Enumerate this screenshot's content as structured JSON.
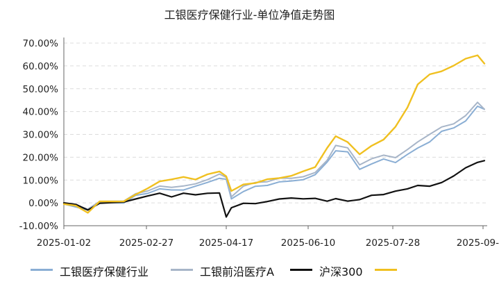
{
  "chart_data": {
    "type": "line",
    "title": "工银医疗保健行业-单位净值走势图",
    "xlabel": "",
    "ylabel": "",
    "x_ticks": [
      "2025-01-02",
      "2025-02-27",
      "2025-04-17",
      "2025-06-10",
      "2025-07-28",
      "2025-09-"
    ],
    "y_ticks": [
      "70.00%",
      "60.00%",
      "50.00%",
      "40.00%",
      "30.00%",
      "20.00%",
      "10.00%",
      "0.00%",
      "-10.00%"
    ],
    "ylim": [
      -10,
      70
    ],
    "grid": "horizontal dashed",
    "legend_position": "bottom",
    "series": [
      {
        "name": "工银医疗保健行业",
        "color": "#8aaed4",
        "x": [
          "2025-01-02",
          "2025-01-09",
          "2025-01-16",
          "2025-01-23",
          "2025-02-06",
          "2025-02-13",
          "2025-02-20",
          "2025-02-27",
          "2025-03-06",
          "2025-03-13",
          "2025-03-20",
          "2025-03-27",
          "2025-04-03",
          "2025-04-07",
          "2025-04-10",
          "2025-04-17",
          "2025-04-24",
          "2025-05-01",
          "2025-05-08",
          "2025-05-15",
          "2025-05-22",
          "2025-05-29",
          "2025-06-05",
          "2025-06-10",
          "2025-06-17",
          "2025-06-24",
          "2025-07-01",
          "2025-07-08",
          "2025-07-15",
          "2025-07-22",
          "2025-07-28",
          "2025-08-04",
          "2025-08-11",
          "2025-08-18",
          "2025-08-25",
          "2025-09-01",
          "2025-09-05"
        ],
        "values": [
          -0.5,
          -1.5,
          -3.5,
          0.5,
          0.0,
          3.0,
          4.5,
          6.0,
          5.5,
          6.0,
          7.0,
          9.0,
          11.0,
          10.0,
          2.0,
          5.0,
          7.0,
          8.0,
          9.0,
          9.5,
          10.5,
          12.0,
          18.0,
          23.0,
          22.0,
          15.0,
          17.0,
          19.0,
          18.0,
          21.0,
          24.0,
          27.0,
          31.0,
          33.0,
          36.0,
          42.0,
          41.0
        ]
      },
      {
        "name": "工银前沿医疗A",
        "color": "#a7b5c8",
        "x": [
          "2025-01-02",
          "2025-01-09",
          "2025-01-16",
          "2025-01-23",
          "2025-02-06",
          "2025-02-13",
          "2025-02-20",
          "2025-02-27",
          "2025-03-06",
          "2025-03-13",
          "2025-03-20",
          "2025-03-27",
          "2025-04-03",
          "2025-04-07",
          "2025-04-10",
          "2025-04-17",
          "2025-04-24",
          "2025-05-01",
          "2025-05-08",
          "2025-05-15",
          "2025-05-22",
          "2025-05-29",
          "2025-06-05",
          "2025-06-10",
          "2025-06-17",
          "2025-06-24",
          "2025-07-01",
          "2025-07-08",
          "2025-07-15",
          "2025-07-22",
          "2025-07-28",
          "2025-08-04",
          "2025-08-11",
          "2025-08-18",
          "2025-08-25",
          "2025-09-01",
          "2025-09-05"
        ],
        "values": [
          -0.3,
          -1.0,
          -3.0,
          1.0,
          0.5,
          4.0,
          5.5,
          7.0,
          7.0,
          7.5,
          8.0,
          10.5,
          12.5,
          11.0,
          3.0,
          7.0,
          9.0,
          9.5,
          10.5,
          11.0,
          11.5,
          13.0,
          19.0,
          25.0,
          24.0,
          17.0,
          19.0,
          21.0,
          20.0,
          23.0,
          27.0,
          30.0,
          33.0,
          35.0,
          38.0,
          44.0,
          41.0
        ]
      },
      {
        "name": "沪深300",
        "color": "#111111",
        "x": [
          "2025-01-02",
          "2025-01-09",
          "2025-01-16",
          "2025-01-23",
          "2025-02-06",
          "2025-02-13",
          "2025-02-20",
          "2025-02-27",
          "2025-03-06",
          "2025-03-13",
          "2025-03-20",
          "2025-03-27",
          "2025-04-03",
          "2025-04-07",
          "2025-04-10",
          "2025-04-17",
          "2025-04-24",
          "2025-05-01",
          "2025-05-08",
          "2025-05-15",
          "2025-05-22",
          "2025-05-29",
          "2025-06-05",
          "2025-06-10",
          "2025-06-17",
          "2025-06-24",
          "2025-07-01",
          "2025-07-08",
          "2025-07-15",
          "2025-07-22",
          "2025-07-28",
          "2025-08-04",
          "2025-08-11",
          "2025-08-18",
          "2025-08-25",
          "2025-09-01",
          "2025-09-05"
        ],
        "values": [
          0.0,
          -1.0,
          -3.0,
          0.0,
          0.0,
          2.0,
          3.0,
          4.0,
          3.0,
          4.0,
          3.5,
          4.5,
          4.0,
          -6.0,
          -2.0,
          -0.5,
          0.0,
          0.5,
          1.5,
          2.5,
          1.5,
          2.0,
          1.0,
          1.5,
          1.0,
          1.5,
          3.0,
          4.0,
          5.0,
          6.0,
          8.0,
          7.0,
          9.0,
          12.0,
          15.0,
          18.0,
          18.5
        ]
      },
      {
        "name": "",
        "color": "#f0c020",
        "x": [
          "2025-01-02",
          "2025-01-09",
          "2025-01-16",
          "2025-01-23",
          "2025-02-06",
          "2025-02-13",
          "2025-02-20",
          "2025-02-27",
          "2025-03-06",
          "2025-03-13",
          "2025-03-20",
          "2025-03-27",
          "2025-04-03",
          "2025-04-07",
          "2025-04-10",
          "2025-04-17",
          "2025-04-24",
          "2025-05-01",
          "2025-05-08",
          "2025-05-15",
          "2025-05-22",
          "2025-05-29",
          "2025-06-05",
          "2025-06-10",
          "2025-06-17",
          "2025-06-24",
          "2025-07-01",
          "2025-07-08",
          "2025-07-15",
          "2025-07-22",
          "2025-07-28",
          "2025-08-04",
          "2025-08-11",
          "2025-08-18",
          "2025-08-25",
          "2025-09-01",
          "2025-09-05"
        ],
        "values": [
          -0.5,
          -1.5,
          -4.0,
          0.5,
          0.5,
          4.0,
          6.0,
          9.5,
          10.5,
          11.0,
          10.5,
          12.5,
          13.5,
          12.0,
          5.0,
          8.0,
          9.0,
          10.0,
          11.0,
          12.0,
          13.5,
          16.0,
          24.0,
          29.0,
          27.0,
          21.0,
          25.0,
          28.0,
          33.0,
          42.0,
          52.0,
          56.0,
          58.0,
          60.0,
          63.0,
          65.0,
          61.0
        ]
      }
    ]
  }
}
